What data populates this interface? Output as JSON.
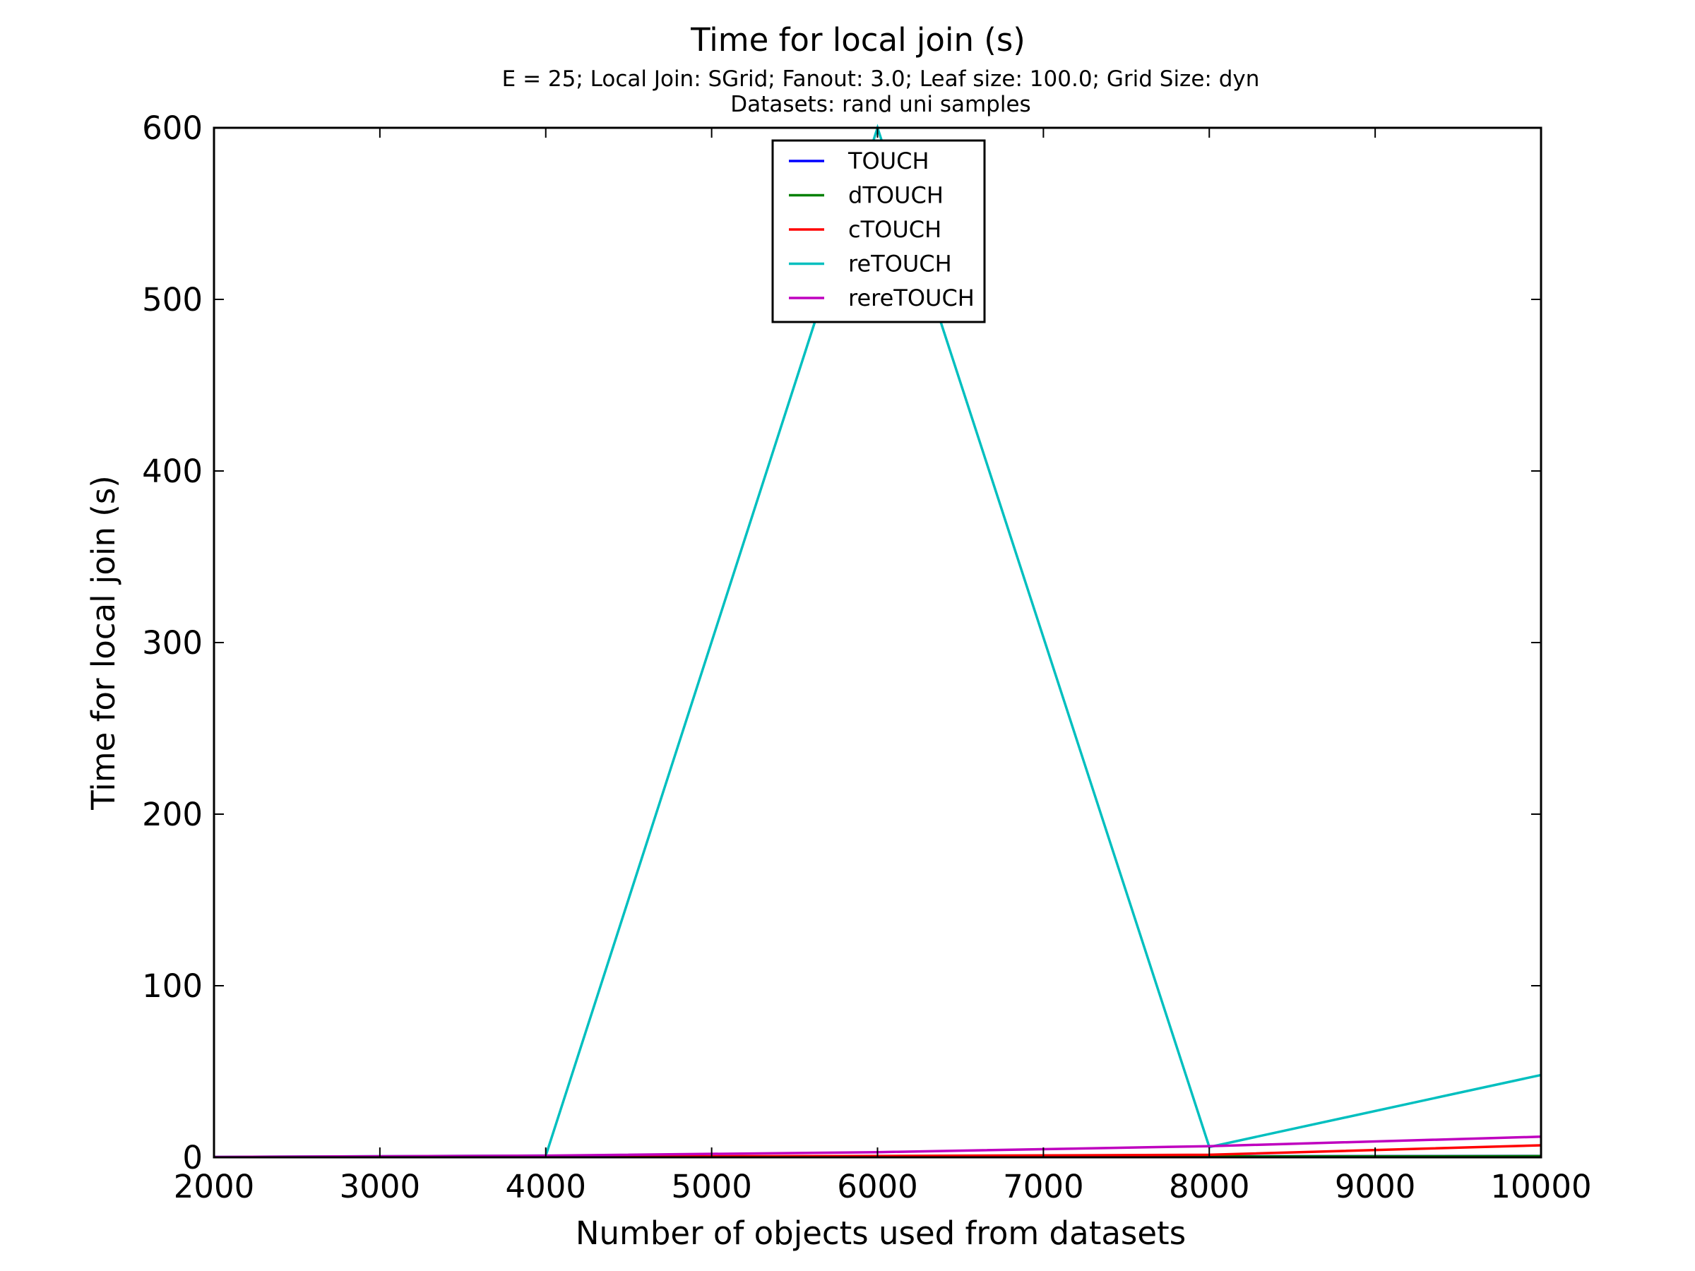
{
  "chart_data": {
    "type": "line",
    "title": "Time for local join (s)",
    "subtitle_lines": [
      "E = 25; Local Join: SGrid; Fanout: 3.0; Leaf size: 100.0; Grid Size: dyn",
      "Datasets: rand uni samples"
    ],
    "xlabel": "Number of objects used from datasets",
    "ylabel": "Time for local join (s)",
    "xlim": [
      2000,
      10000
    ],
    "ylim": [
      0,
      600
    ],
    "xticks": [
      2000,
      3000,
      4000,
      5000,
      6000,
      7000,
      8000,
      9000,
      10000
    ],
    "yticks": [
      0,
      100,
      200,
      300,
      400,
      500,
      600
    ],
    "grid": false,
    "legend_position": "upper-center",
    "x": [
      2000,
      4000,
      6000,
      8000,
      10000
    ],
    "series": [
      {
        "name": "TOUCH",
        "color": "#0000ff",
        "values": [
          0.1,
          0.3,
          0.5,
          0.6,
          0.8
        ]
      },
      {
        "name": "dTOUCH",
        "color": "#008000",
        "values": [
          0.1,
          0.2,
          0.4,
          0.5,
          0.7
        ]
      },
      {
        "name": "cTOUCH",
        "color": "#ff0000",
        "values": [
          0.1,
          0.4,
          0.8,
          1.5,
          7
        ]
      },
      {
        "name": "reTOUCH",
        "color": "#00bfbf",
        "values": [
          0.2,
          1,
          600,
          6,
          48
        ]
      },
      {
        "name": "rereTOUCH",
        "color": "#bf00bf",
        "values": [
          0.2,
          1,
          3,
          6.5,
          12
        ]
      }
    ]
  }
}
